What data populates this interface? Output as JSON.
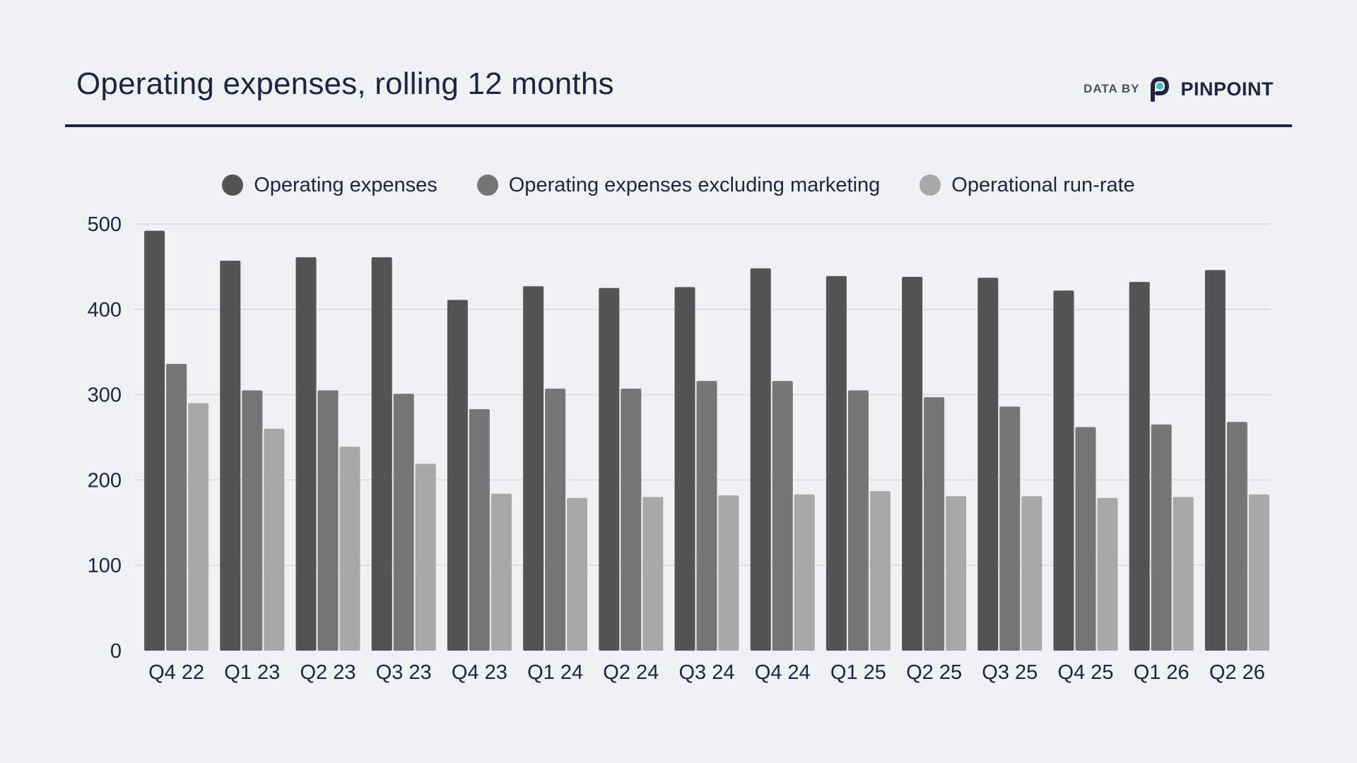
{
  "header": {
    "title": "Operating expenses, rolling 12 months",
    "brand_prefix": "DATA BY",
    "brand_name": "PINPOINT",
    "brand_logo_icon": "pinpoint-p-logo-icon"
  },
  "colors": {
    "background": "#eff1f5",
    "text": "#1c2541",
    "rule": "#1c2541",
    "gridline": "#d6d8de",
    "logo_navy": "#1c2541",
    "logo_teal": "#3fc1c9"
  },
  "chart_data": {
    "type": "bar",
    "categories": [
      "Q4 22",
      "Q1 23",
      "Q2 23",
      "Q3 23",
      "Q4 23",
      "Q1 24",
      "Q2 24",
      "Q3 24",
      "Q4 24",
      "Q1 25",
      "Q2 25",
      "Q3 25",
      "Q4 25",
      "Q1 26",
      "Q2 26"
    ],
    "series": [
      {
        "name": "Operating expenses",
        "color": "#545454",
        "values": [
          492,
          457,
          461,
          461,
          411,
          427,
          425,
          426,
          448,
          439,
          438,
          437,
          422,
          432,
          446
        ]
      },
      {
        "name": "Operating expenses excluding marketing",
        "color": "#767676",
        "values": [
          336,
          305,
          305,
          301,
          283,
          307,
          307,
          316,
          316,
          305,
          297,
          286,
          262,
          265,
          268
        ]
      },
      {
        "name": "Operational run-rate",
        "color": "#a8a8a8",
        "values": [
          290,
          260,
          239,
          219,
          184,
          179,
          180,
          182,
          183,
          187,
          181,
          181,
          179,
          180,
          183
        ]
      }
    ],
    "title": "Operating expenses, rolling 12 months",
    "xlabel": "",
    "ylabel": "",
    "ylim": [
      0,
      500
    ],
    "yticks": [
      0,
      100,
      200,
      300,
      400,
      500
    ],
    "grid": true,
    "legend_position": "top-center"
  }
}
